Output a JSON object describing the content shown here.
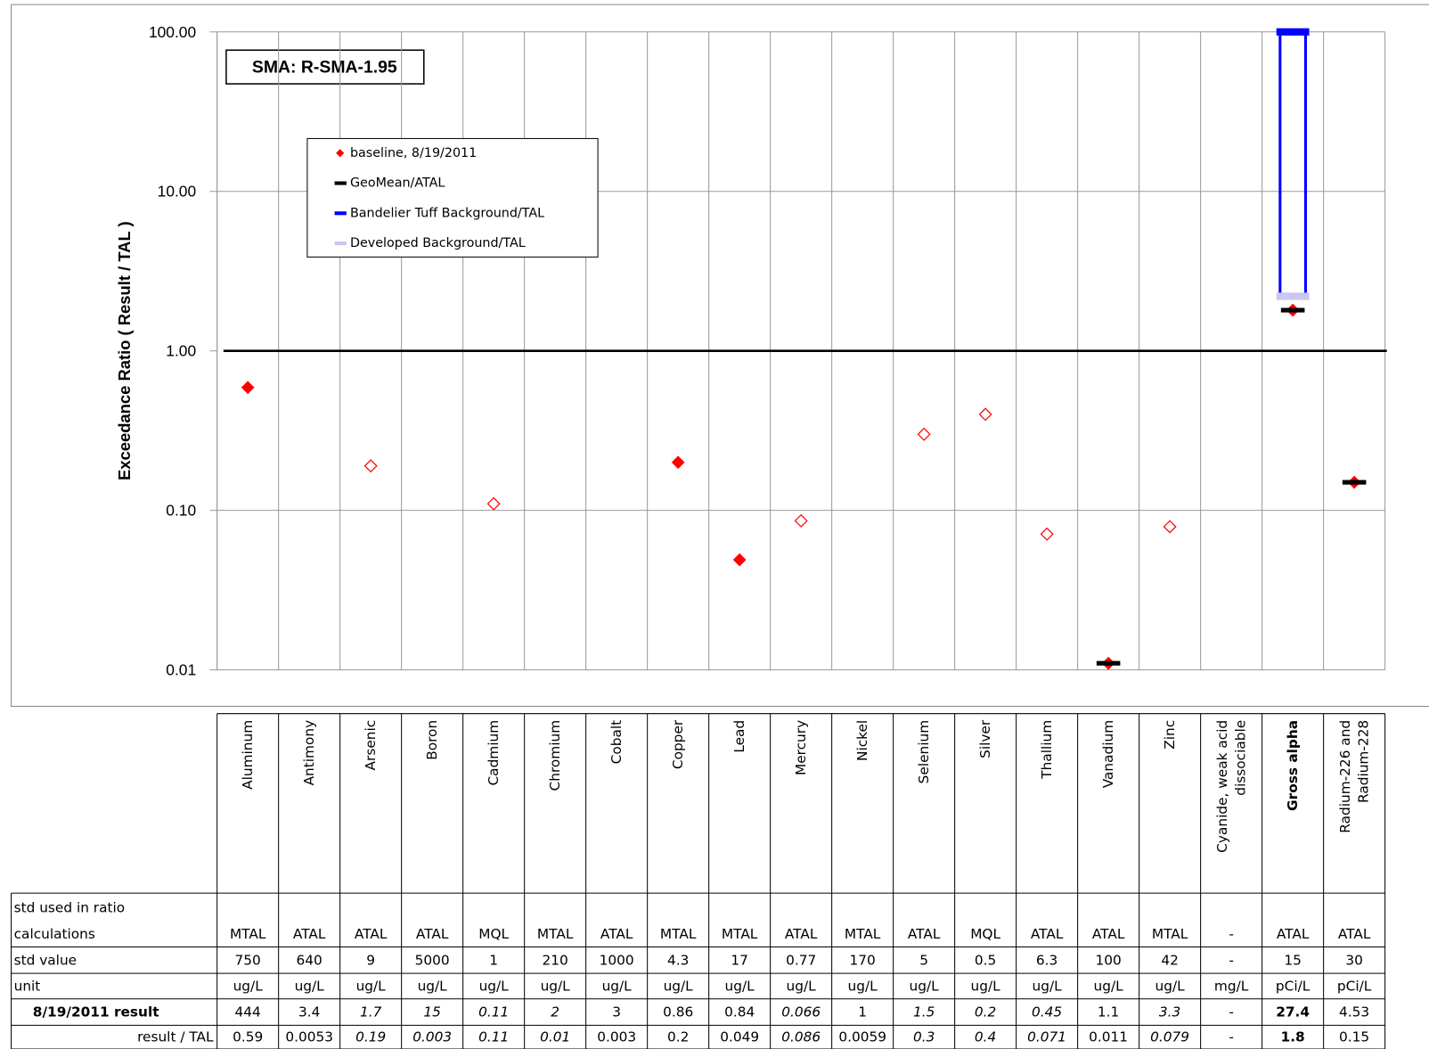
{
  "chart_data": {
    "type": "dot",
    "annotation": "SMA: R-SMA-1.95",
    "y_label": "Exceedance Ratio  ( Result / TAL )",
    "categories": [
      "Aluminum",
      "Antimony",
      "Arsenic",
      "Boron",
      "Cadmium",
      "Chromium",
      "Cobalt",
      "Copper",
      "Lead",
      "Mercury",
      "Nickel",
      "Selenium",
      "Silver",
      "Thallium",
      "Vanadium",
      "Zinc",
      "Cyanide, weak acid dissociable",
      "Gross alpha",
      "Radium-226 and Radium-228"
    ],
    "detected": [
      true,
      true,
      false,
      false,
      false,
      false,
      true,
      true,
      true,
      false,
      true,
      false,
      false,
      false,
      true,
      false,
      true,
      true,
      true
    ],
    "highlight": [
      false,
      false,
      false,
      false,
      false,
      false,
      false,
      false,
      false,
      false,
      false,
      false,
      false,
      false,
      false,
      false,
      false,
      true,
      false
    ],
    "series": [
      {
        "name": "baseline, 8/19/2011",
        "color": "#ff0000",
        "values": [
          0.59,
          null,
          0.19,
          null,
          0.11,
          null,
          null,
          0.2,
          0.049,
          0.086,
          null,
          0.3,
          0.4,
          0.071,
          0.011,
          0.079,
          null,
          1.8,
          0.15
        ]
      },
      {
        "name": "GeoMean/ATAL",
        "color": "#000000",
        "values": [
          null,
          null,
          null,
          null,
          null,
          null,
          null,
          null,
          null,
          null,
          null,
          null,
          null,
          null,
          0.011,
          null,
          null,
          1.8,
          0.15
        ]
      },
      {
        "name": "Bandelier Tuff Background/TAL",
        "color": "#0000ff",
        "values": [
          null,
          null,
          null,
          null,
          null,
          null,
          null,
          null,
          null,
          null,
          null,
          null,
          null,
          null,
          null,
          null,
          null,
          100,
          null
        ]
      },
      {
        "name": "Developed Background/TAL",
        "color": "#c8c8f0",
        "values": [
          null,
          null,
          null,
          null,
          null,
          null,
          null,
          null,
          null,
          null,
          null,
          null,
          null,
          null,
          null,
          null,
          null,
          2.2,
          null
        ]
      }
    ],
    "log_scale": true,
    "grid": true,
    "reference_line": 1,
    "ylim": [
      0.01,
      100
    ],
    "yticks": [
      {
        "value": 100,
        "label": "100.00"
      },
      {
        "value": 10,
        "label": "10.00"
      },
      {
        "value": 1,
        "label": "1.00"
      },
      {
        "value": 0.1,
        "label": "0.10"
      },
      {
        "value": 0.01,
        "label": "0.01"
      }
    ]
  },
  "table": {
    "rows": [
      {
        "label": "std used in ratio calculations",
        "cells": [
          "MTAL",
          "ATAL",
          "ATAL",
          "ATAL",
          "MQL",
          "MTAL",
          "ATAL",
          "MTAL",
          "MTAL",
          "ATAL",
          "MTAL",
          "ATAL",
          "MQL",
          "ATAL",
          "ATAL",
          "MTAL",
          "-",
          "ATAL",
          "ATAL"
        ]
      },
      {
        "label": "std value",
        "cells": [
          "750",
          "640",
          "9",
          "5000",
          "1",
          "210",
          "1000",
          "4.3",
          "17",
          "0.77",
          "170",
          "5",
          "0.5",
          "6.3",
          "100",
          "42",
          "-",
          "15",
          "30"
        ]
      },
      {
        "label": "unit",
        "cells": [
          "ug/L",
          "ug/L",
          "ug/L",
          "ug/L",
          "ug/L",
          "ug/L",
          "ug/L",
          "ug/L",
          "ug/L",
          "ug/L",
          "ug/L",
          "ug/L",
          "ug/L",
          "ug/L",
          "ug/L",
          "ug/L",
          "mg/L",
          "pCi/L",
          "pCi/L"
        ]
      },
      {
        "label": "8/19/2011 result",
        "cells": [
          "444",
          "3.4",
          "1.7",
          "15",
          "0.11",
          "2",
          "3",
          "0.86",
          "0.84",
          "0.066",
          "1",
          "1.5",
          "0.2",
          "0.45",
          "1.1",
          "3.3",
          "-",
          "27.4",
          "4.53"
        ]
      },
      {
        "label": "result / TAL",
        "cells": [
          "0.59",
          "0.0053",
          "0.19",
          "0.003",
          "0.11",
          "0.01",
          "0.003",
          "0.2",
          "0.049",
          "0.086",
          "0.0059",
          "0.3",
          "0.4",
          "0.071",
          "0.011",
          "0.079",
          "-",
          "1.8",
          "0.15"
        ]
      }
    ]
  }
}
